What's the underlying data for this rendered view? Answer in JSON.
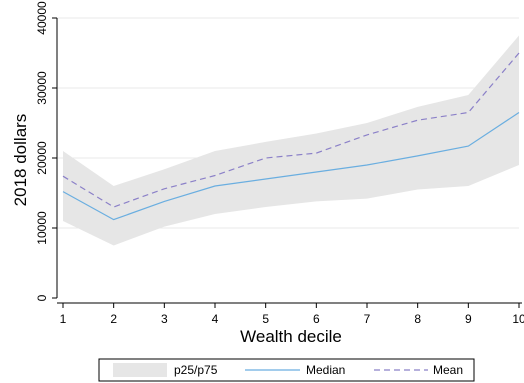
{
  "chart_data": {
    "type": "line",
    "xlabel": "Wealth decile",
    "ylabel": "2018 dollars",
    "x": [
      1,
      2,
      3,
      4,
      5,
      6,
      7,
      8,
      9,
      10
    ],
    "x_tick_labels": [
      "1",
      "2",
      "3",
      "4",
      "5",
      "6",
      "7",
      "8",
      "9",
      "10"
    ],
    "y_ticks": [
      0,
      10000,
      20000,
      30000,
      40000
    ],
    "y_tick_labels": [
      "0",
      "10000",
      "20000",
      "30000",
      "40000"
    ],
    "xlim": [
      1,
      10
    ],
    "ylim": [
      0,
      40000
    ],
    "grid": true,
    "legend_position": "bottom",
    "band": {
      "name": "p25/p75",
      "lower": [
        11000,
        7500,
        10200,
        12000,
        13000,
        13800,
        14200,
        15500,
        16000,
        19000
      ],
      "upper": [
        21000,
        16000,
        18400,
        21000,
        22300,
        23500,
        25000,
        27300,
        29000,
        37500
      ],
      "color": "#e6e6e6"
    },
    "series": [
      {
        "name": "Median",
        "values": [
          15200,
          11200,
          13800,
          16000,
          17000,
          18000,
          19000,
          20300,
          21700,
          26500
        ],
        "color": "#6aaee0",
        "dash": "solid"
      },
      {
        "name": "Mean",
        "values": [
          17400,
          13000,
          15600,
          17500,
          20000,
          20700,
          23300,
          25400,
          26500,
          35000
        ],
        "color": "#8b80c8",
        "dash": "dashed"
      }
    ]
  }
}
